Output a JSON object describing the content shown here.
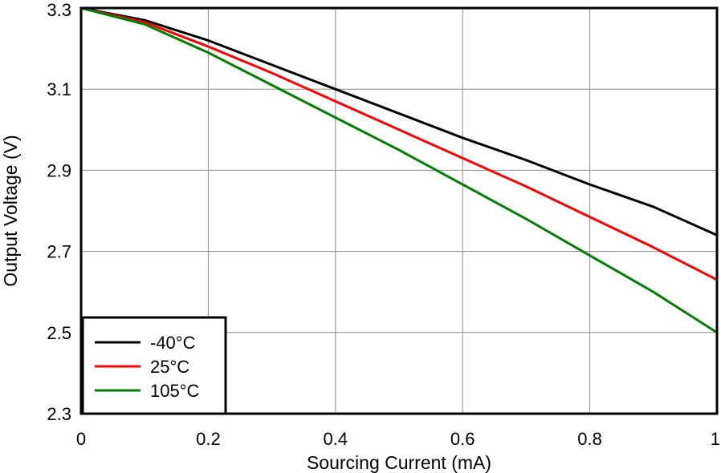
{
  "chart_data": {
    "type": "line",
    "title": "",
    "xlabel": "Sourcing Current (mA)",
    "ylabel": "Output Voltage (V)",
    "xlim": [
      0,
      1
    ],
    "ylim": [
      2.3,
      3.3
    ],
    "x_ticks": [
      0,
      0.2,
      0.4,
      0.6,
      0.8,
      1
    ],
    "x_tick_labels": [
      "0",
      "0.2",
      "0.4",
      "0.6",
      "0.8",
      "1"
    ],
    "y_ticks": [
      2.3,
      2.5,
      2.7,
      2.9,
      3.1,
      3.3
    ],
    "y_tick_labels": [
      "2.3",
      "2.5",
      "2.7",
      "2.9",
      "3.1",
      "3.3"
    ],
    "grid": true,
    "legend_position": "bottom-left",
    "x": [
      0,
      0.1,
      0.2,
      0.3,
      0.4,
      0.5,
      0.6,
      0.7,
      0.8,
      0.9,
      1.0
    ],
    "series": [
      {
        "name": "-40°C",
        "color": "#000000",
        "values": [
          3.3,
          3.27,
          3.22,
          3.16,
          3.1,
          3.04,
          2.98,
          2.925,
          2.865,
          2.81,
          2.74
        ]
      },
      {
        "name": "25°C",
        "color": "#ff0000",
        "values": [
          3.3,
          3.265,
          3.205,
          3.14,
          3.07,
          3.0,
          2.93,
          2.86,
          2.785,
          2.71,
          2.63
        ]
      },
      {
        "name": "105°C",
        "color": "#008000",
        "values": [
          3.3,
          3.26,
          3.19,
          3.11,
          3.03,
          2.95,
          2.865,
          2.78,
          2.69,
          2.6,
          2.5
        ]
      }
    ]
  }
}
